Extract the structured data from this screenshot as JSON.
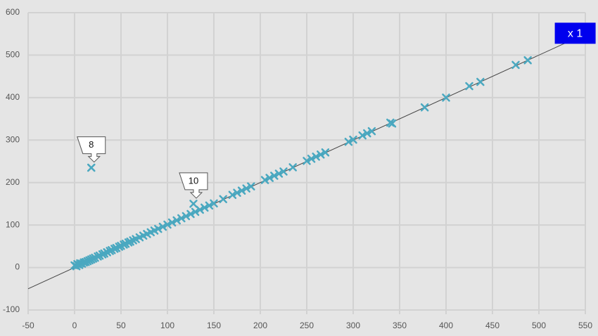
{
  "chart_data": {
    "type": "scatter",
    "series": [
      {
        "color": "#4aa8c0",
        "x": [
          0,
          2,
          3,
          5,
          6,
          8,
          10,
          12,
          14,
          16,
          18,
          20,
          22,
          25,
          27,
          30,
          32,
          35,
          38,
          40,
          43,
          45,
          48,
          50,
          53,
          55,
          58,
          60,
          63,
          66,
          70,
          74,
          78,
          82,
          86,
          90,
          95,
          100,
          105,
          110,
          115,
          120,
          125,
          130,
          135,
          140,
          145,
          150,
          160,
          170,
          175,
          180,
          185,
          190,
          205,
          210,
          215,
          220,
          225,
          235,
          250,
          255,
          260,
          265,
          270,
          295,
          300,
          310,
          315,
          320,
          340,
          342,
          377,
          400,
          425,
          437,
          475,
          488,
          18,
          128
        ],
        "y": [
          5,
          3,
          8,
          6,
          10,
          9,
          12,
          13,
          15,
          17,
          19,
          21,
          23,
          26,
          28,
          31,
          33,
          36,
          39,
          41,
          44,
          46,
          49,
          51,
          54,
          56,
          59,
          61,
          64,
          67,
          71,
          75,
          79,
          83,
          87,
          91,
          96,
          101,
          106,
          111,
          116,
          121,
          126,
          131,
          136,
          141,
          146,
          151,
          161,
          171,
          176,
          181,
          186,
          191,
          206,
          211,
          216,
          221,
          226,
          236,
          251,
          256,
          261,
          266,
          271,
          296,
          301,
          311,
          316,
          321,
          341,
          339,
          377,
          400,
          427,
          437,
          477,
          488,
          235,
          150
        ]
      }
    ],
    "annotations": [
      {
        "text": "8",
        "x": 18,
        "y": 235
      },
      {
        "text": "10",
        "x": 128,
        "y": 150
      }
    ],
    "reference_line": {
      "label": "x 1",
      "slope": 1
    },
    "xlim": [
      -50,
      550
    ],
    "xticks": [
      -50,
      0,
      50,
      100,
      150,
      200,
      250,
      300,
      350,
      400,
      450,
      500,
      550
    ],
    "ylim": [
      -100,
      600
    ],
    "yticks": [
      -100,
      0,
      100,
      200,
      300,
      400,
      500,
      600
    ],
    "grid": true
  }
}
